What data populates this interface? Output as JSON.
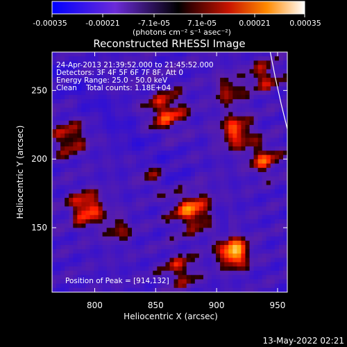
{
  "chart_data": {
    "type": "heatmap",
    "title": "Reconstructed RHESSI Image",
    "xlabel": "Heliocentric X (arcsec)",
    "ylabel": "Heliocentric Y (arcsec)",
    "xlim": [
      765,
      958
    ],
    "ylim": [
      103,
      278
    ],
    "x_ticks": [
      800,
      850,
      900,
      950
    ],
    "y_ticks": [
      150,
      200,
      250
    ],
    "colorbar": {
      "label": "(photons cm⁻² s⁻¹ asec⁻²)",
      "range": [
        -0.00035,
        0.00035
      ],
      "ticks": [
        "-0.00035",
        "-0.00021",
        "-7.1e-05",
        "7.1e-05",
        "0.00021",
        "0.00035"
      ]
    },
    "annotations": [
      "24-Apr-2013 21:39:52.000 to 21:45:52.000",
      "Detectors: 3F 4F 5F 6F 7F 8F, Att 0",
      "Energy Range: 25.0 - 50.0 keV",
      "Clean    Total counts: 1.18E+04"
    ],
    "peak_label": "Position of Peak = [914,132]",
    "peak": [
      914,
      132
    ],
    "grid": false,
    "limb": [
      [
        944,
        278
      ],
      [
        948,
        260
      ],
      [
        953,
        240
      ],
      [
        958,
        222
      ]
    ]
  },
  "footer": {
    "timestamp": "13-May-2022 02:21"
  }
}
